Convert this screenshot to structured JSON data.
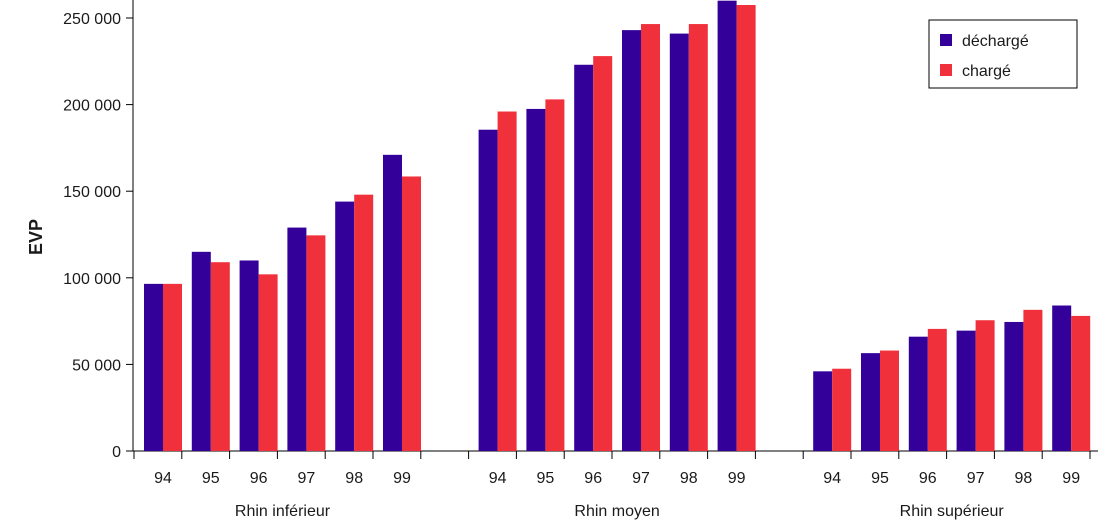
{
  "chart_data": {
    "type": "bar",
    "ylabel": "EVP",
    "ylim": [
      0,
      260000
    ],
    "yticks": [
      0,
      50000,
      100000,
      150000,
      200000,
      250000
    ],
    "ytick_labels": [
      "0",
      "50 000",
      "100 000",
      "150 000",
      "200 000",
      "250 000"
    ],
    "groups": [
      {
        "label": "Rhin inférieur",
        "categories": [
          "94",
          "95",
          "96",
          "97",
          "98",
          "99"
        ],
        "series": [
          {
            "name": "déchargé",
            "values": [
              96500,
              115000,
              110000,
              129000,
              144000,
              171000
            ]
          },
          {
            "name": "chargé",
            "values": [
              96500,
              109000,
              102000,
              124500,
              148000,
              158500
            ]
          }
        ]
      },
      {
        "label": "Rhin moyen",
        "categories": [
          "94",
          "95",
          "96",
          "97",
          "98",
          "99"
        ],
        "series": [
          {
            "name": "déchargé",
            "values": [
              185500,
              197500,
              223000,
              243000,
              241000,
              260000
            ]
          },
          {
            "name": "chargé",
            "values": [
              196000,
              203000,
              228000,
              246500,
              246500,
              257500
            ]
          }
        ]
      },
      {
        "label": "Rhin supérieur",
        "categories": [
          "94",
          "95",
          "96",
          "97",
          "98",
          "99"
        ],
        "series": [
          {
            "name": "déchargé",
            "values": [
              46000,
              56500,
              66000,
              69500,
              74500,
              84000
            ]
          },
          {
            "name": "chargé",
            "values": [
              47500,
              58000,
              70500,
              75500,
              81500,
              78000
            ]
          }
        ]
      }
    ],
    "legend": {
      "position": "top-right",
      "entries": [
        {
          "label": "déchargé",
          "color": "#33009a"
        },
        {
          "label": "chargé",
          "color": "#f0303a"
        }
      ]
    },
    "grid": false
  }
}
